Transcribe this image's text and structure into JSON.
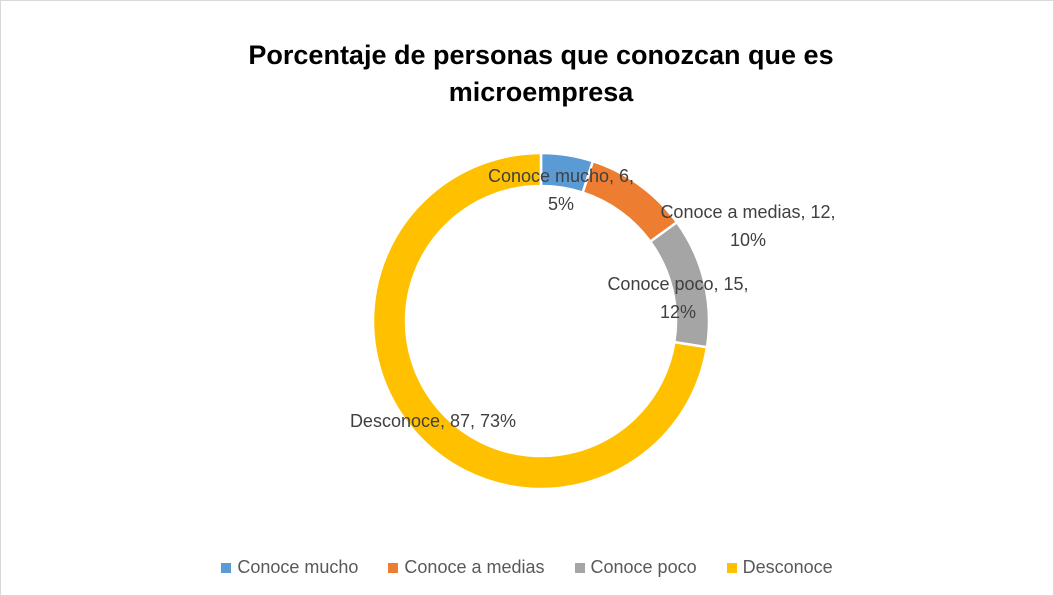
{
  "chart_data": {
    "type": "donut",
    "title": "Porcentaje de personas que conozcan que es microempresa",
    "categories": [
      "Conoce mucho",
      "Conoce a medias",
      "Conoce poco",
      "Desconoce"
    ],
    "values": [
      6,
      12,
      15,
      87
    ],
    "value_labels": [
      "Conoce mucho, 6, 5%",
      "Conoce a medias, 12, 10%",
      "Conoce poco, 15, 12%",
      "Desconoce, 87, 73%"
    ],
    "colors": [
      "#5b9bd5",
      "#ed7d31",
      "#a5a5a5",
      "#ffc000"
    ],
    "legend": "bottom"
  }
}
